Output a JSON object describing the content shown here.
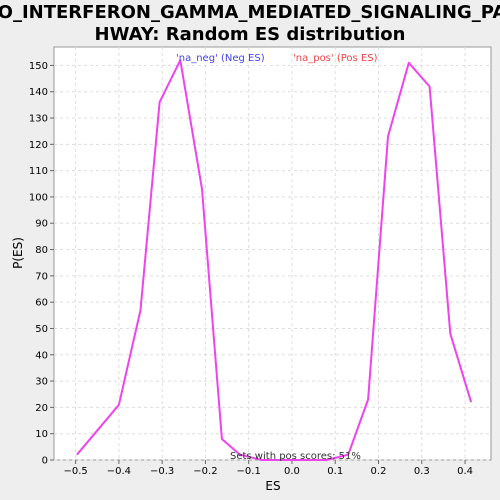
{
  "chart_data": {
    "type": "line",
    "title_lines": [
      "GO_INTERFERON_GAMMA_MEDIATED_SIGNALING_PAT",
      "HWAY: Random ES distribution"
    ],
    "xlabel": "ES",
    "ylabel": "P(ES)",
    "xlim": [
      -0.55,
      0.46
    ],
    "ylim": [
      0,
      157
    ],
    "x_ticks": [
      -0.5,
      -0.4,
      -0.3,
      -0.2,
      -0.1,
      0.0,
      0.1,
      0.2,
      0.3,
      0.4
    ],
    "x_tick_labels": [
      "−0.5",
      "−0.4",
      "−0.3",
      "−0.2",
      "−0.1",
      "0.0",
      "0.1",
      "0.2",
      "0.3",
      "0.4"
    ],
    "y_ticks": [
      0,
      10,
      20,
      30,
      40,
      50,
      60,
      70,
      80,
      90,
      100,
      110,
      120,
      130,
      140,
      150
    ],
    "grid": true,
    "legend": [
      {
        "label": "'na_neg' (Neg ES)",
        "color": "#4444ee"
      },
      {
        "label": "'na_pos' (Pos ES)",
        "color": "#ee4444"
      }
    ],
    "annotation": "Sets with pos scores: 51%",
    "line_color": "#ee44ee",
    "series": [
      {
        "x": [
          -0.497,
          -0.4,
          -0.35,
          -0.306,
          -0.258,
          -0.208,
          -0.162,
          -0.12,
          -0.07,
          -0.02,
          0.03,
          0.08,
          0.13,
          0.176,
          0.222,
          0.27,
          0.318,
          0.366,
          0.414
        ],
        "y": [
          2,
          21,
          57,
          136,
          152,
          103,
          8,
          2,
          0,
          0,
          0,
          0,
          2,
          23,
          123,
          151,
          142,
          48,
          22
        ]
      }
    ]
  }
}
